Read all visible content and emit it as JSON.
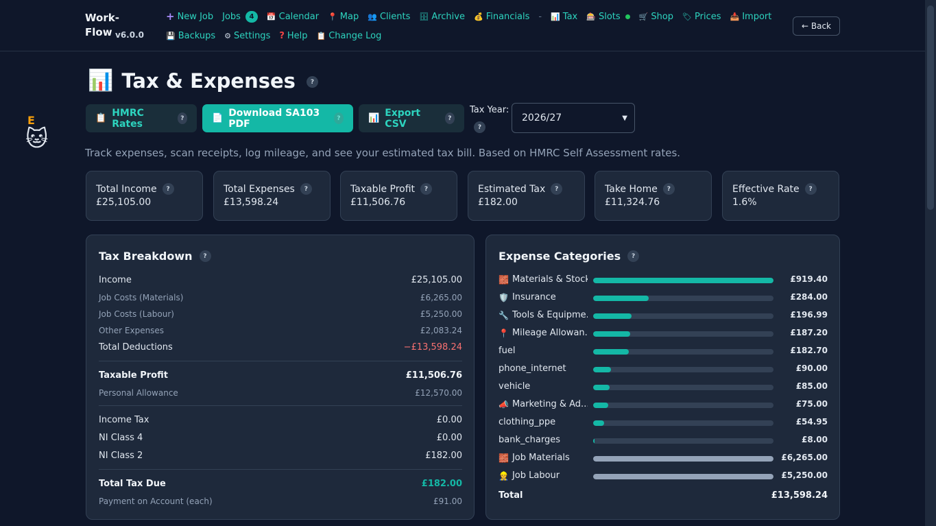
{
  "app": {
    "name": "Work-Flow",
    "version": "v6.0.0"
  },
  "nav": {
    "new_job": "New Job",
    "jobs": "Jobs",
    "jobs_count": "4",
    "calendar": "Calendar",
    "map": "Map",
    "clients": "Clients",
    "archive": "Archive",
    "financials": "Financials",
    "separator": "-",
    "tax": "Tax",
    "slots": "Slots",
    "shop": "Shop",
    "prices": "Prices",
    "import": "Import",
    "backups": "Backups",
    "settings": "Settings",
    "help": "Help",
    "change_log": "Change Log",
    "back": "← Back"
  },
  "header": {
    "title": "Tax & Expenses",
    "help": "?",
    "hmrc_rates": "HMRC Rates",
    "download_pdf": "Download SA103 PDF",
    "export_csv": "Export CSV",
    "tax_year_label": "Tax Year:",
    "tax_year_value": "2026/27",
    "subtitle": "Track expenses, scan receipts, log mileage, and see your estimated tax bill. Based on HMRC Self Assessment rates."
  },
  "stats": [
    {
      "label": "Total Income",
      "value": "£25,105.00"
    },
    {
      "label": "Total Expenses",
      "value": "£13,598.24"
    },
    {
      "label": "Taxable Profit",
      "value": "£11,506.76"
    },
    {
      "label": "Estimated Tax",
      "value": "£182.00"
    },
    {
      "label": "Take Home",
      "value": "£11,324.76"
    },
    {
      "label": "Effective Rate",
      "value": "1.6%"
    }
  ],
  "breakdown": {
    "title": "Tax Breakdown",
    "rows": [
      {
        "label": "Income",
        "value": "£25,105.00"
      },
      {
        "label": "Job Costs (Materials)",
        "value": "£6,265.00"
      },
      {
        "label": "Job Costs (Labour)",
        "value": "£5,250.00"
      },
      {
        "label": "Other Expenses",
        "value": "£2,083.24"
      },
      {
        "label": "Total Deductions",
        "value": "−£13,598.24"
      },
      {
        "label": "Taxable Profit",
        "value": "£11,506.76"
      },
      {
        "label": "Personal Allowance",
        "value": "£12,570.00"
      },
      {
        "label": "Income Tax",
        "value": "£0.00"
      },
      {
        "label": "NI Class 4",
        "value": "£0.00"
      },
      {
        "label": "NI Class 2",
        "value": "£182.00"
      },
      {
        "label": "Total Tax Due",
        "value": "£182.00"
      },
      {
        "label": "Payment on Account (each)",
        "value": "£91.00"
      }
    ]
  },
  "categories": {
    "title": "Expense Categories",
    "items": [
      {
        "icon": "🧱",
        "label": "Materials & Stock",
        "value": "£919.40",
        "pct": 1.0
      },
      {
        "icon": "🛡️",
        "label": "Insurance",
        "value": "£284.00",
        "pct": 0.309
      },
      {
        "icon": "🔧",
        "label": "Tools & Equipme...",
        "value": "£196.99",
        "pct": 0.214
      },
      {
        "icon": "📍",
        "label": "Mileage Allowan...",
        "value": "£187.20",
        "pct": 0.204
      },
      {
        "icon": "",
        "label": "fuel",
        "value": "£182.70",
        "pct": 0.199
      },
      {
        "icon": "",
        "label": "phone_internet",
        "value": "£90.00",
        "pct": 0.098
      },
      {
        "icon": "",
        "label": "vehicle",
        "value": "£85.00",
        "pct": 0.092
      },
      {
        "icon": "📣",
        "label": "Marketing & Ad...",
        "value": "£75.00",
        "pct": 0.082
      },
      {
        "icon": "",
        "label": "clothing_ppe",
        "value": "£54.95",
        "pct": 0.06
      },
      {
        "icon": "",
        "label": "bank_charges",
        "value": "£8.00",
        "pct": 0.009
      },
      {
        "icon": "🧱",
        "label": "Job Materials",
        "value": "£6,265.00",
        "pct": 1.0,
        "grey": true
      },
      {
        "icon": "👷",
        "label": "Job Labour",
        "value": "£5,250.00",
        "pct": 1.0,
        "grey": true
      }
    ],
    "total_label": "Total",
    "total_value": "£13,598.24"
  },
  "side": {
    "letter": "E"
  },
  "colors": {
    "accent": "#14b8a6",
    "negative": "#f87171",
    "background": "#0f172a",
    "card": "#1e293b"
  }
}
